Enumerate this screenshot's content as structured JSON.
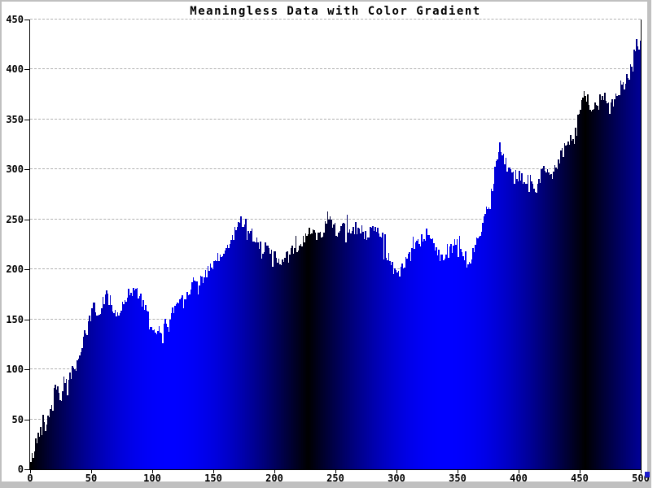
{
  "window": {
    "background": "#c0c0c0",
    "corner_accent_color": "#1a1acc"
  },
  "chart_data": {
    "type": "bar",
    "title": "Meaningless Data with Color Gradient",
    "xlabel": "",
    "ylabel": "",
    "xlim": [
      0,
      500
    ],
    "ylim": [
      0,
      450
    ],
    "x_ticks": [
      0,
      50,
      100,
      150,
      200,
      250,
      300,
      350,
      400,
      450,
      500
    ],
    "y_ticks": [
      0,
      50,
      100,
      150,
      200,
      250,
      300,
      350,
      400,
      450
    ],
    "grid": "horizontal dashed gridlines at each y tick, no top border",
    "grid_color": "#b0b0b0",
    "axis_color": "#000000",
    "text_color": "#000000",
    "bar_count": 500,
    "series_sample_step": 4,
    "series_sampled_values": [
      6,
      26,
      40,
      46,
      60,
      88,
      72,
      80,
      95,
      100,
      116,
      132,
      150,
      164,
      153,
      172,
      175,
      160,
      155,
      165,
      178,
      180,
      176,
      165,
      150,
      135,
      136,
      142,
      147,
      158,
      168,
      172,
      178,
      185,
      188,
      192,
      196,
      201,
      208,
      214,
      220,
      228,
      240,
      250,
      246,
      237,
      230,
      225,
      220,
      217,
      213,
      209,
      206,
      217,
      221,
      224,
      231,
      237,
      234,
      237,
      241,
      256,
      244,
      237,
      240,
      237,
      240,
      240,
      235,
      230,
      241,
      235,
      228,
      215,
      204,
      196,
      200,
      208,
      215,
      222,
      229,
      235,
      231,
      224,
      212,
      213,
      219,
      226,
      220,
      205,
      208,
      225,
      240,
      257,
      268,
      300,
      328,
      312,
      295,
      293,
      296,
      291,
      287,
      277,
      288,
      307,
      296,
      296,
      308,
      318,
      330,
      332,
      345,
      375,
      368,
      358,
      365,
      378,
      362,
      365,
      372,
      380,
      390,
      402,
      428,
      420
    ],
    "noise_amplitude": 7,
    "noise_seed": 42,
    "fill_gradient": {
      "type": "horizontal sine cycle (color depends on x only)",
      "period_x": 227,
      "color_dark": "#000000",
      "color_bright": "#0000ff"
    }
  }
}
